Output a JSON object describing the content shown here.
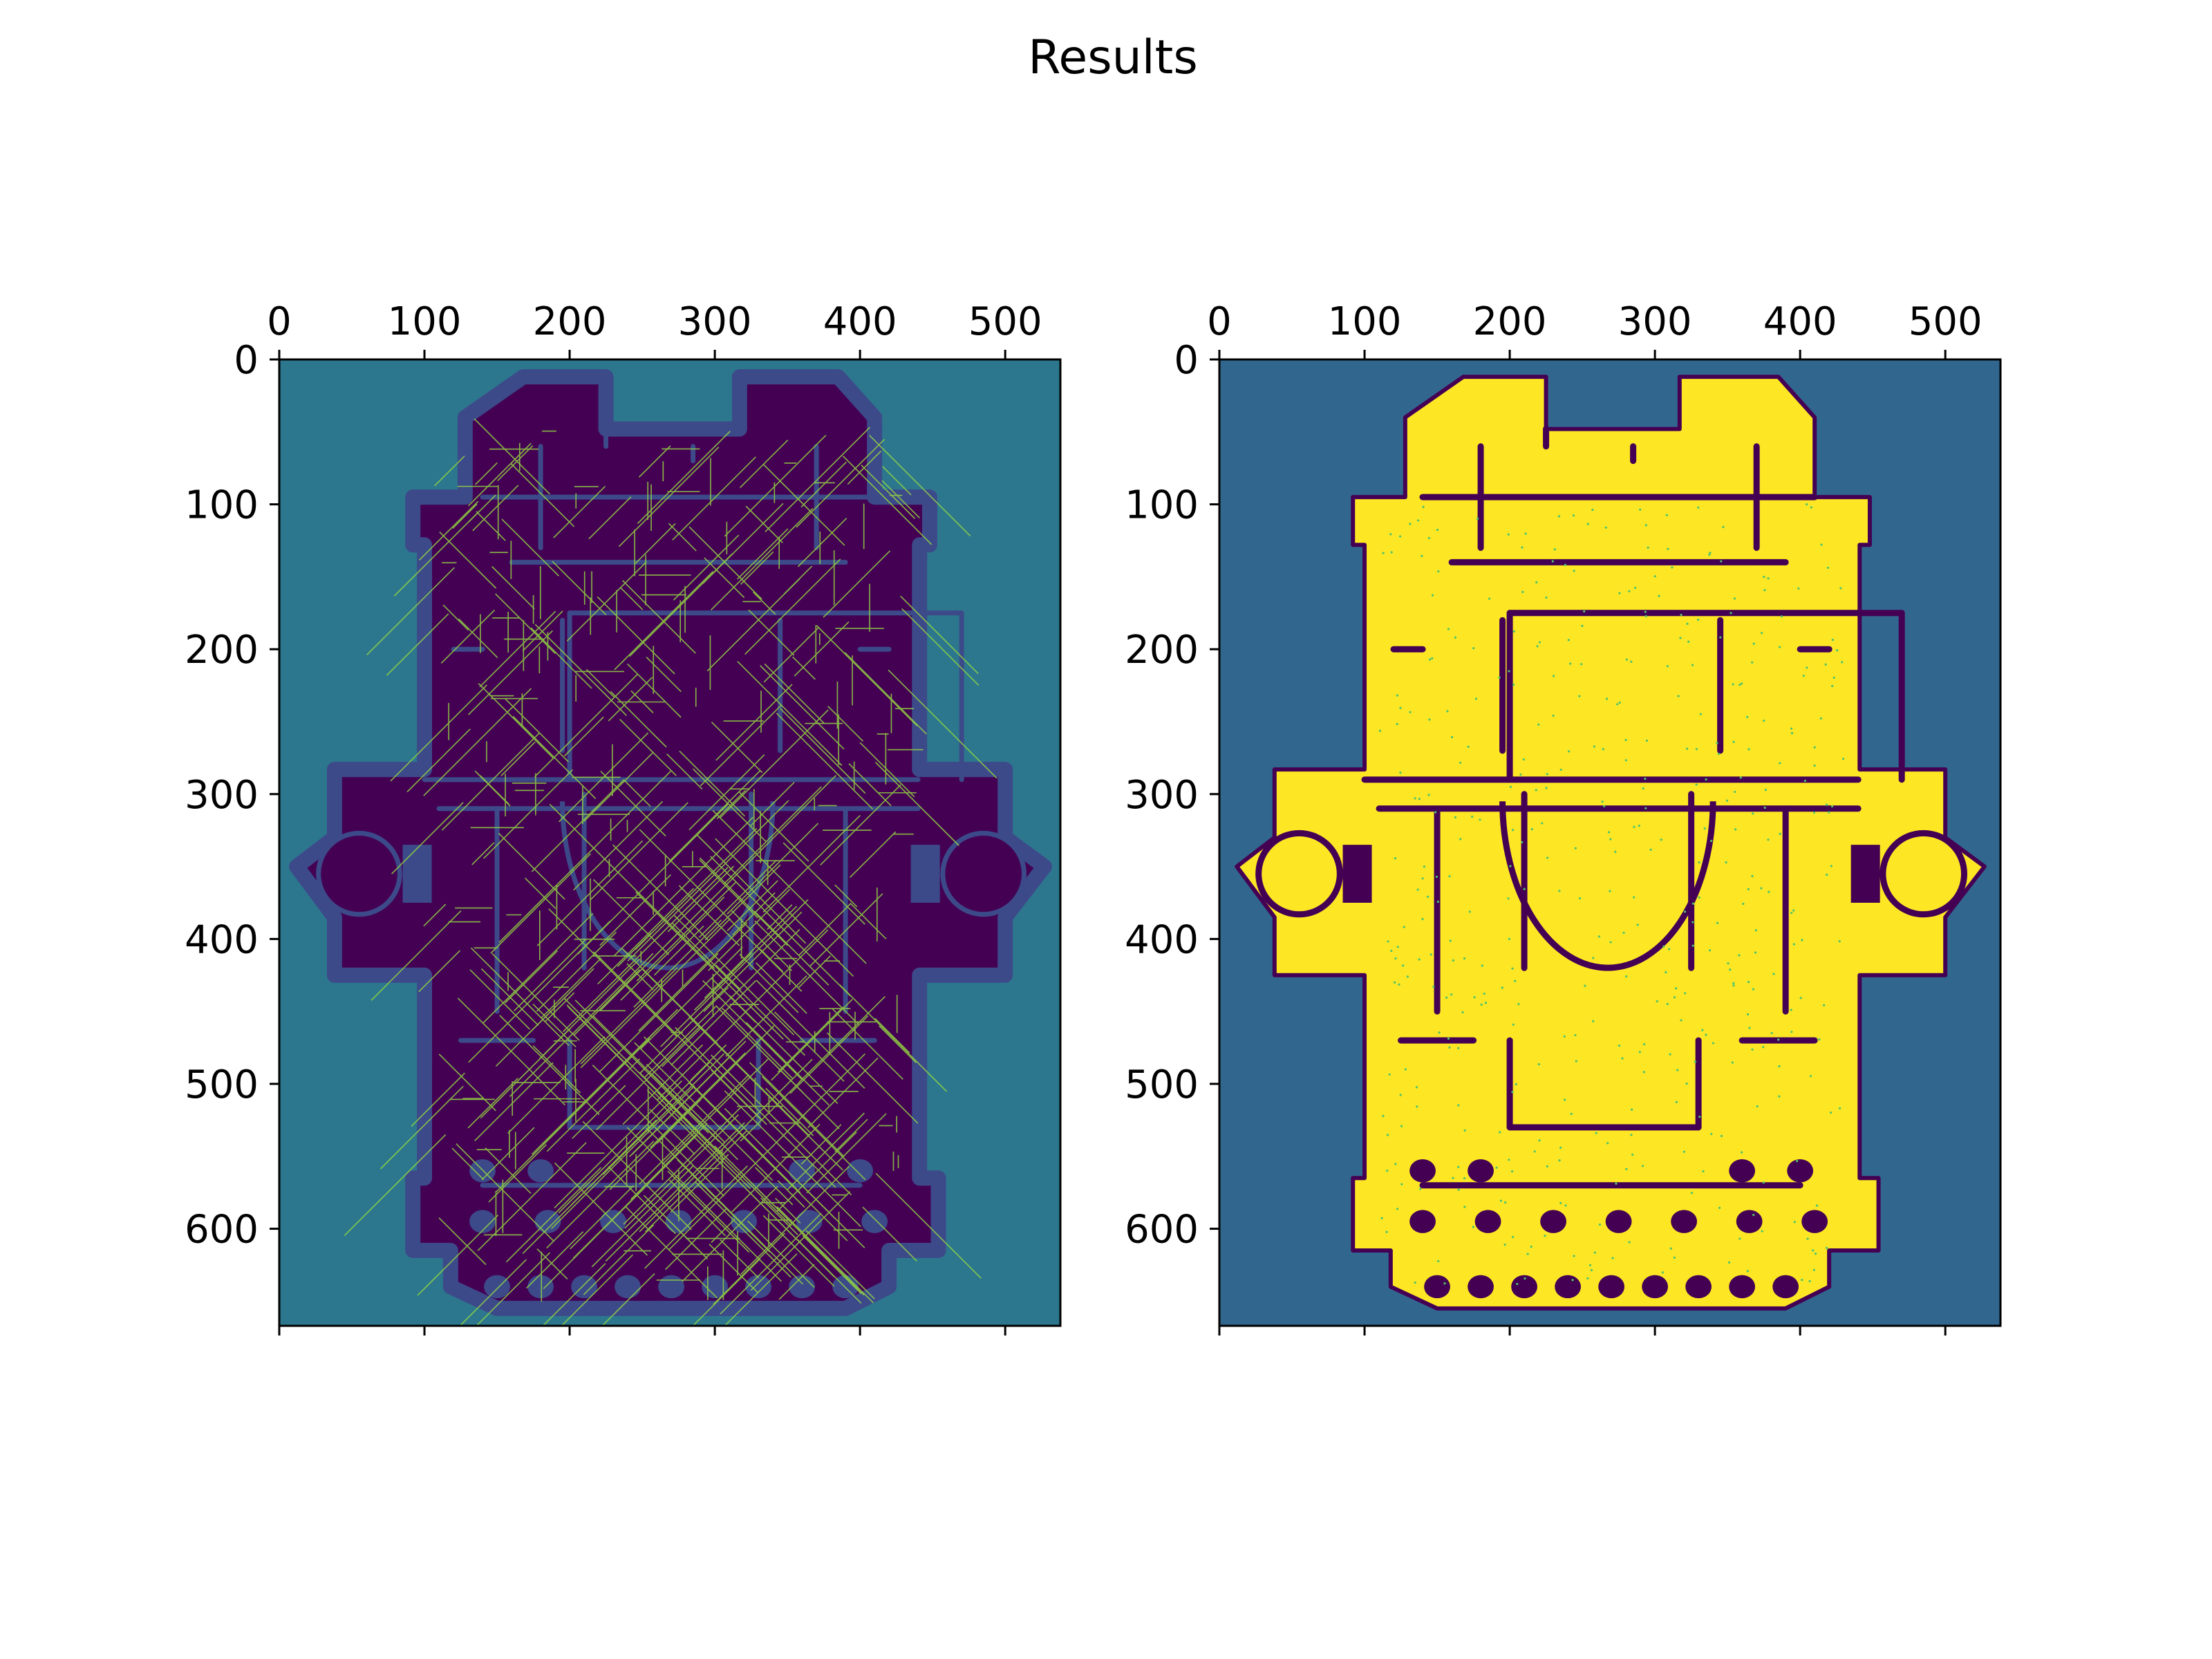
{
  "figure": {
    "title": "Results"
  },
  "colors": {
    "path_bg": "#2c778e",
    "free_dark": "#440154",
    "wall": "#3d4a8a",
    "path_line": "#93d741",
    "map_bg": "#31678e",
    "map_free": "#fde725",
    "map_wall": "#440154",
    "dot": "#4ec36b"
  },
  "chart_data": [
    {
      "type": "heatmap",
      "title": "",
      "xlabel": "",
      "ylabel": "",
      "xlim": [
        0,
        538
      ],
      "ylim": [
        667,
        0
      ],
      "xticks": [
        0,
        100,
        200,
        300,
        400,
        500
      ],
      "yticks": [
        0,
        100,
        200,
        300,
        400,
        500,
        600
      ],
      "x_tick_position": "top",
      "colormap": "viridis",
      "description_values": [
        "background",
        "obstacle boundary",
        "free space",
        "path lines"
      ]
    },
    {
      "type": "heatmap",
      "title": "",
      "xlabel": "",
      "ylabel": "",
      "xlim": [
        0,
        538
      ],
      "ylim": [
        667,
        0
      ],
      "xticks": [
        0,
        100,
        200,
        300,
        400,
        500
      ],
      "yticks": [
        0,
        100,
        200,
        300,
        400,
        500,
        600
      ],
      "x_tick_position": "top",
      "colormap": "viridis",
      "description_values": [
        "background",
        "walls",
        "free space"
      ]
    }
  ]
}
